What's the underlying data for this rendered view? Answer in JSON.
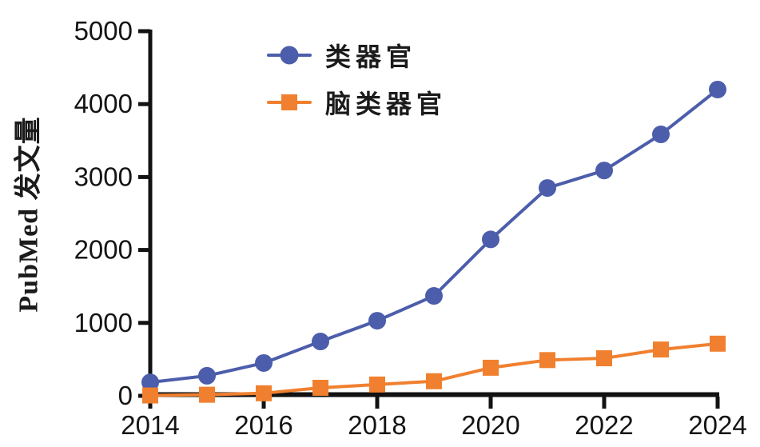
{
  "chart_data": {
    "type": "line",
    "title": "",
    "xlabel": "",
    "ylabel": "PubMed 发文量",
    "x": [
      2014,
      2015,
      2016,
      2017,
      2018,
      2019,
      2020,
      2021,
      2022,
      2023,
      2024
    ],
    "x_tick_labels": [
      "2014",
      "2016",
      "2018",
      "2020",
      "2022",
      "2024"
    ],
    "y_ticks": [
      0,
      1000,
      2000,
      3000,
      4000,
      5000
    ],
    "ylim": [
      0,
      5000
    ],
    "grid": false,
    "legend_position": "top-center-inside",
    "series": [
      {
        "name": "类器官",
        "marker": "circle",
        "color": "#4C5DAB",
        "values": [
          185,
          275,
          450,
          745,
          1030,
          1370,
          2145,
          2850,
          3090,
          3585,
          4200
        ]
      },
      {
        "name": "脑类器官",
        "marker": "square",
        "color": "#F0802F",
        "values": [
          5,
          15,
          35,
          110,
          155,
          200,
          385,
          490,
          515,
          635,
          715
        ]
      }
    ],
    "axis_color": "#121212"
  }
}
